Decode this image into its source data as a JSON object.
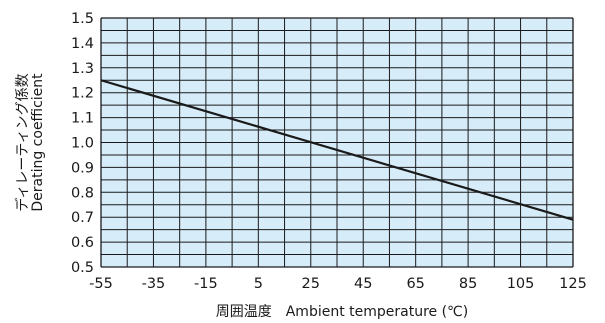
{
  "chart_data": {
    "type": "line",
    "title": "",
    "xlabel": "周囲温度　Ambient temperature (℃)",
    "ylabel_lines": [
      "ディレーティング係数",
      "Derating coefficient"
    ],
    "xlim": [
      -55,
      125
    ],
    "ylim": [
      0.5,
      1.5
    ],
    "x_ticks": [
      -55,
      -35,
      -15,
      5,
      25,
      45,
      65,
      85,
      105,
      125
    ],
    "y_ticks": [
      "0.5",
      "0.6",
      "0.7",
      "0.8",
      "0.9",
      "1.0",
      "1.1",
      "1.2",
      "1.3",
      "1.4",
      "1.5"
    ],
    "grid": true,
    "series": [
      {
        "x": [
          -55,
          125
        ],
        "y": [
          1.25,
          0.69
        ]
      }
    ],
    "colors": {
      "plot_bg": "#d6ecf9",
      "grid": "#1a1a1a",
      "line": "#1a1a1a"
    }
  }
}
